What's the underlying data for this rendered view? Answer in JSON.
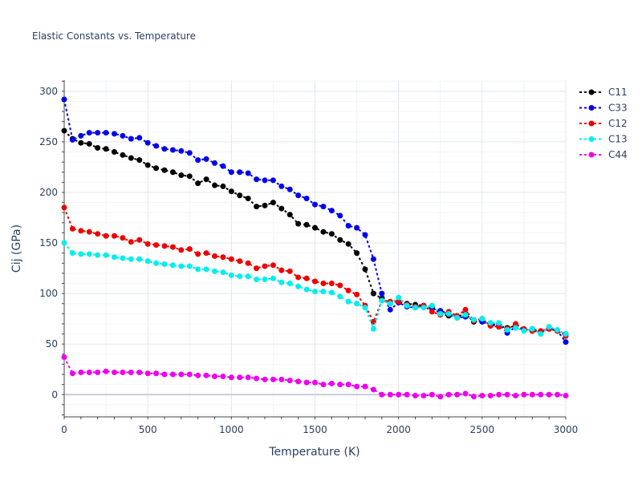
{
  "chart_data": {
    "type": "line",
    "title": "Elastic Constants vs. Temperature",
    "xlabel": "Temperature (K)",
    "ylabel": "Cij (GPa)",
    "xlim": [
      0,
      3000
    ],
    "ylim": [
      -22,
      311
    ],
    "xticks": [
      0,
      500,
      1000,
      1500,
      2000,
      2500,
      3000
    ],
    "yticks": [
      0,
      50,
      100,
      150,
      200,
      250,
      300
    ],
    "grid": true,
    "legend_position": "top-right",
    "x": [
      0,
      50,
      100,
      150,
      200,
      250,
      300,
      350,
      400,
      450,
      500,
      550,
      600,
      650,
      700,
      750,
      800,
      850,
      900,
      950,
      1000,
      1050,
      1100,
      1150,
      1200,
      1250,
      1300,
      1350,
      1400,
      1450,
      1500,
      1550,
      1600,
      1650,
      1700,
      1750,
      1800,
      1850,
      1900,
      1950,
      2000,
      2050,
      2100,
      2150,
      2200,
      2250,
      2300,
      2350,
      2400,
      2450,
      2500,
      2550,
      2600,
      2650,
      2700,
      2750,
      2800,
      2850,
      2900,
      2950,
      3000
    ],
    "series": [
      {
        "name": "C11",
        "color": "#000000",
        "values": [
          261,
          253,
          249,
          248,
          244,
          243,
          240,
          237,
          234,
          232,
          227,
          224,
          222,
          220,
          217,
          216,
          209,
          213,
          207,
          206,
          201,
          197,
          194,
          186,
          187,
          190,
          184,
          178,
          169,
          168,
          165,
          161,
          159,
          153,
          149,
          140,
          124,
          100,
          95,
          91,
          92,
          90,
          89,
          88,
          87,
          80,
          78,
          77,
          80,
          72,
          74,
          69,
          68,
          66,
          68,
          64,
          63,
          62,
          65,
          63,
          60
        ]
      },
      {
        "name": "C33",
        "color": "#0000ee",
        "values": [
          292,
          252,
          256,
          259,
          259,
          259,
          258,
          256,
          253,
          254,
          249,
          246,
          243,
          242,
          241,
          239,
          232,
          233,
          229,
          226,
          220,
          220,
          219,
          213,
          212,
          212,
          206,
          203,
          197,
          194,
          188,
          186,
          182,
          177,
          167,
          165,
          158,
          134,
          100,
          84,
          91,
          87,
          86,
          88,
          85,
          83,
          80,
          76,
          77,
          74,
          72,
          69,
          70,
          61,
          67,
          64,
          65,
          62,
          66,
          63,
          52
        ]
      },
      {
        "name": "C12",
        "color": "#ee0000",
        "values": [
          185,
          164,
          162,
          161,
          159,
          157,
          157,
          155,
          151,
          153,
          149,
          148,
          147,
          146,
          143,
          144,
          139,
          140,
          137,
          136,
          134,
          132,
          130,
          125,
          127,
          128,
          123,
          122,
          116,
          115,
          112,
          110,
          110,
          108,
          103,
          99,
          88,
          72,
          93,
          92,
          92,
          89,
          87,
          88,
          82,
          79,
          82,
          78,
          84,
          73,
          75,
          68,
          67,
          65,
          70,
          65,
          63,
          63,
          65,
          63,
          58
        ]
      },
      {
        "name": "C13",
        "color": "#00eeee",
        "values": [
          150,
          140,
          139,
          139,
          138,
          138,
          136,
          135,
          134,
          134,
          132,
          130,
          129,
          128,
          127,
          127,
          124,
          124,
          122,
          121,
          118,
          117,
          117,
          114,
          114,
          115,
          111,
          110,
          107,
          104,
          102,
          102,
          101,
          97,
          92,
          90,
          86,
          65,
          93,
          90,
          96,
          88,
          86,
          86,
          88,
          80,
          80,
          76,
          79,
          74,
          75,
          71,
          71,
          64,
          66,
          63,
          65,
          60,
          67,
          64,
          60
        ]
      },
      {
        "name": "C44",
        "color": "#ee00ee",
        "values": [
          37,
          21,
          22,
          22,
          22,
          23,
          22,
          22,
          22,
          22,
          21,
          21,
          20,
          20,
          20,
          20,
          19,
          19,
          18,
          18,
          17,
          17,
          17,
          16,
          15,
          15,
          15,
          14,
          13,
          12,
          12,
          10,
          11,
          10,
          10,
          8,
          8,
          5,
          0,
          0,
          0,
          0,
          -1,
          -1,
          0,
          -2,
          0,
          0,
          1,
          -2,
          -1,
          -1,
          0,
          0,
          -1,
          0,
          0,
          0,
          0,
          0,
          -1
        ]
      }
    ]
  }
}
